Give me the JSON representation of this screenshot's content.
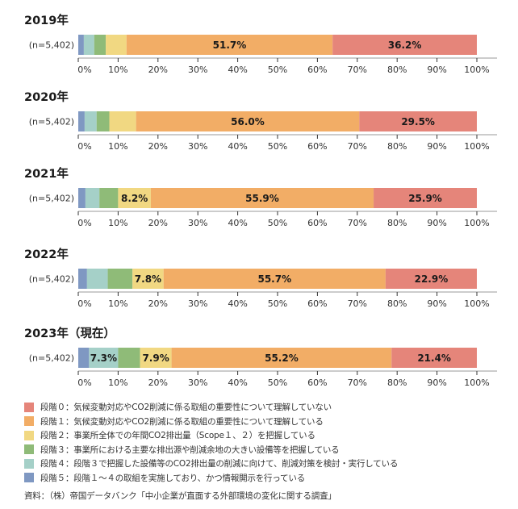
{
  "chart_data": [
    {
      "type": "bar",
      "orientation": "horizontal-stacked-100",
      "title": "2019年",
      "category": "(n=5,402)",
      "values": [
        {
          "stage": "段階５",
          "value": 1.4,
          "label": ""
        },
        {
          "stage": "段階４",
          "value": 2.6,
          "label": ""
        },
        {
          "stage": "段階３",
          "value": 2.9,
          "label": ""
        },
        {
          "stage": "段階２",
          "value": 5.2,
          "label": ""
        },
        {
          "stage": "段階１",
          "value": 51.7,
          "label": "51.7%"
        },
        {
          "stage": "段階０",
          "value": 36.2,
          "label": "36.2%"
        }
      ],
      "xlim": [
        0,
        100
      ]
    },
    {
      "type": "bar",
      "orientation": "horizontal-stacked-100",
      "title": "2020年",
      "category": "(n=5,402)",
      "values": [
        {
          "stage": "段階５",
          "value": 1.6,
          "label": ""
        },
        {
          "stage": "段階４",
          "value": 3.0,
          "label": ""
        },
        {
          "stage": "段階３",
          "value": 3.2,
          "label": ""
        },
        {
          "stage": "段階２",
          "value": 6.7,
          "label": ""
        },
        {
          "stage": "段階１",
          "value": 56.0,
          "label": "56.0%"
        },
        {
          "stage": "段階０",
          "value": 29.5,
          "label": "29.5%"
        }
      ],
      "xlim": [
        0,
        100
      ]
    },
    {
      "type": "bar",
      "orientation": "horizontal-stacked-100",
      "title": "2021年",
      "category": "(n=5,402)",
      "values": [
        {
          "stage": "段階５",
          "value": 1.8,
          "label": ""
        },
        {
          "stage": "段階４",
          "value": 3.5,
          "label": ""
        },
        {
          "stage": "段階３",
          "value": 4.7,
          "label": ""
        },
        {
          "stage": "段階２",
          "value": 8.2,
          "label": "8.2%"
        },
        {
          "stage": "段階１",
          "value": 55.9,
          "label": "55.9%"
        },
        {
          "stage": "段階０",
          "value": 25.9,
          "label": "25.9%"
        }
      ],
      "xlim": [
        0,
        100
      ]
    },
    {
      "type": "bar",
      "orientation": "horizontal-stacked-100",
      "title": "2022年",
      "category": "(n=5,402)",
      "values": [
        {
          "stage": "段階５",
          "value": 2.2,
          "label": ""
        },
        {
          "stage": "段階４",
          "value": 5.2,
          "label": ""
        },
        {
          "stage": "段階３",
          "value": 6.2,
          "label": ""
        },
        {
          "stage": "段階２",
          "value": 7.8,
          "label": "7.8%"
        },
        {
          "stage": "段階１",
          "value": 55.7,
          "label": "55.7%"
        },
        {
          "stage": "段階０",
          "value": 22.9,
          "label": "22.9%"
        }
      ],
      "xlim": [
        0,
        100
      ]
    },
    {
      "type": "bar",
      "orientation": "horizontal-stacked-100",
      "title": "2023年（現在）",
      "category": "(n=5,402)",
      "values": [
        {
          "stage": "段階５",
          "value": 2.7,
          "label": ""
        },
        {
          "stage": "段階４",
          "value": 7.3,
          "label": "7.3%"
        },
        {
          "stage": "段階３",
          "value": 5.5,
          "label": ""
        },
        {
          "stage": "段階２",
          "value": 7.9,
          "label": "7.9%"
        },
        {
          "stage": "段階１",
          "value": 55.2,
          "label": "55.2%"
        },
        {
          "stage": "段階０",
          "value": 21.4,
          "label": "21.4%"
        }
      ],
      "xlim": [
        0,
        100
      ]
    }
  ],
  "x_ticks": [
    "0%",
    "10%",
    "20%",
    "30%",
    "40%",
    "50%",
    "60%",
    "70%",
    "80%",
    "90%",
    "100%"
  ],
  "stage_colors": {
    "段階０": "#e5857a",
    "段階１": "#f2ad66",
    "段階２": "#f1d882",
    "段階３": "#8fbb78",
    "段階４": "#a5d0c8",
    "段階５": "#7f98c2"
  },
  "legend": [
    {
      "stage": "段階０",
      "text": "段階０：気候変動対応やCO2削減に係る取組の重要性について理解していない"
    },
    {
      "stage": "段階１",
      "text": "段階１：気候変動対応やCO2削減に係る取組の重要性について理解している"
    },
    {
      "stage": "段階２",
      "text": "段階２：事業所全体での年間CO2排出量（Scope１、２）を把握している"
    },
    {
      "stage": "段階３",
      "text": "段階３：事業所における主要な排出源や削減余地の大きい設備等を把握している"
    },
    {
      "stage": "段階４",
      "text": "段階４：段階３で把握した設備等のCO2排出量の削減に向けて、削減対策を検討・実行している"
    },
    {
      "stage": "段階５",
      "text": "段階５：段階１～４の取組を実施しており、かつ情報開示を行っている"
    }
  ],
  "source": "資料：（株）帝国データバンク「中小企業が直面する外部環境の変化に関する調査」"
}
